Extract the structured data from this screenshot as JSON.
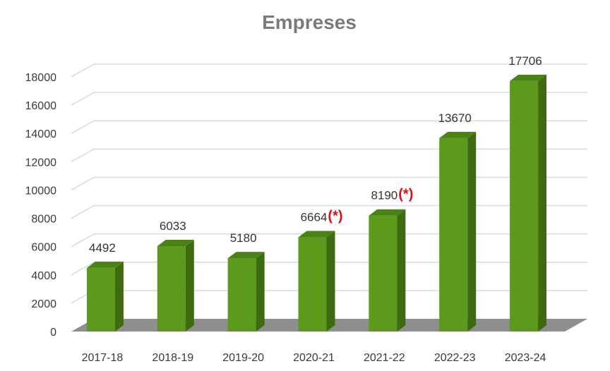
{
  "chart_data": {
    "type": "bar",
    "title": "Empreses",
    "xlabel": "",
    "ylabel": "",
    "categories": [
      "2017-18",
      "2018-19",
      "2019-20",
      "2020-21",
      "2021-22",
      "2022-23",
      "2023-24"
    ],
    "series": [
      {
        "values": [
          4492,
          6033,
          5180,
          6664,
          8190,
          13670,
          17706
        ]
      }
    ],
    "data_labels": [
      "4492",
      "6033",
      "5180",
      "6664",
      "8190",
      "13670",
      "17706"
    ],
    "annotations": [
      "",
      "",
      "",
      "(*)",
      "(*)",
      "",
      ""
    ],
    "ylim": [
      0,
      18000
    ],
    "yticks": [
      "0",
      "2000",
      "4000",
      "6000",
      "8000",
      "10000",
      "12000",
      "14000",
      "16000",
      "18000"
    ],
    "grid": true,
    "legend": "none",
    "style": "3d-column",
    "colors": {
      "bar_front": "#5b9a1b",
      "bar_side": "#3e6a10",
      "bar_top": "#4b8216",
      "floor": "#8e8e8e",
      "grid": "#d9d9d9",
      "annotation": "#e01010"
    }
  }
}
